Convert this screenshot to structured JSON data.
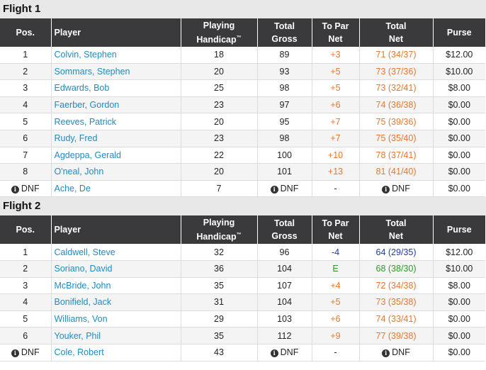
{
  "columns": {
    "pos": "Pos.",
    "player": "Player",
    "handicap_l1": "Playing",
    "handicap_l2": "Handicap",
    "handicap_tm": "™",
    "gross_l1": "Total",
    "gross_l2": "Gross",
    "topar_l1": "To Par",
    "topar_l2": "Net",
    "net_l1": "Total",
    "net_l2": "Net",
    "purse": "Purse"
  },
  "flights": [
    {
      "title": "Flight 1",
      "rows": [
        {
          "pos": "1",
          "player": "Colvin, Stephen",
          "handicap": "18",
          "gross": "89",
          "topar": "+3",
          "net": "71 (34/37)",
          "purse": "$12.00",
          "color": "orange"
        },
        {
          "pos": "2",
          "player": "Sommars, Stephen",
          "handicap": "20",
          "gross": "93",
          "topar": "+5",
          "net": "73 (37/36)",
          "purse": "$10.00",
          "color": "orange"
        },
        {
          "pos": "3",
          "player": "Edwards, Bob",
          "handicap": "25",
          "gross": "98",
          "topar": "+5",
          "net": "73 (32/41)",
          "purse": "$8.00",
          "color": "orange"
        },
        {
          "pos": "4",
          "player": "Faerber, Gordon",
          "handicap": "23",
          "gross": "97",
          "topar": "+6",
          "net": "74 (36/38)",
          "purse": "$0.00",
          "color": "orange"
        },
        {
          "pos": "5",
          "player": "Reeves, Patrick",
          "handicap": "20",
          "gross": "95",
          "topar": "+7",
          "net": "75 (39/36)",
          "purse": "$0.00",
          "color": "orange"
        },
        {
          "pos": "6",
          "player": "Rudy, Fred",
          "handicap": "23",
          "gross": "98",
          "topar": "+7",
          "net": "75 (35/40)",
          "purse": "$0.00",
          "color": "orange"
        },
        {
          "pos": "7",
          "player": "Agdeppa, Gerald",
          "handicap": "22",
          "gross": "100",
          "topar": "+10",
          "net": "78 (37/41)",
          "purse": "$0.00",
          "color": "orange"
        },
        {
          "pos": "8",
          "player": "O'neal, John",
          "handicap": "20",
          "gross": "101",
          "topar": "+13",
          "net": "81 (41/40)",
          "purse": "$0.00",
          "color": "orange"
        },
        {
          "pos": "DNF",
          "player": "Ache, De",
          "handicap": "7",
          "gross": "DNF",
          "topar": "-",
          "net": "DNF",
          "purse": "$0.00",
          "color": "none",
          "dnf": true
        }
      ]
    },
    {
      "title": "Flight 2",
      "rows": [
        {
          "pos": "1",
          "player": "Caldwell, Steve",
          "handicap": "32",
          "gross": "96",
          "topar": "-4",
          "net": "64 (29/35)",
          "purse": "$12.00",
          "color": "blue"
        },
        {
          "pos": "2",
          "player": "Soriano, David",
          "handicap": "36",
          "gross": "104",
          "topar": "E",
          "net": "68 (38/30)",
          "purse": "$10.00",
          "color": "green"
        },
        {
          "pos": "3",
          "player": "McBride, John",
          "handicap": "35",
          "gross": "107",
          "topar": "+4",
          "net": "72 (34/38)",
          "purse": "$8.00",
          "color": "orange"
        },
        {
          "pos": "4",
          "player": "Bonifield, Jack",
          "handicap": "31",
          "gross": "104",
          "topar": "+5",
          "net": "73 (35/38)",
          "purse": "$0.00",
          "color": "orange"
        },
        {
          "pos": "5",
          "player": "Williams, Von",
          "handicap": "29",
          "gross": "103",
          "topar": "+6",
          "net": "74 (33/41)",
          "purse": "$0.00",
          "color": "orange"
        },
        {
          "pos": "6",
          "player": "Youker, Phil",
          "handicap": "35",
          "gross": "112",
          "topar": "+9",
          "net": "77 (39/38)",
          "purse": "$0.00",
          "color": "orange"
        },
        {
          "pos": "DNF",
          "player": "Cole, Robert",
          "handicap": "43",
          "gross": "DNF",
          "topar": "-",
          "net": "DNF",
          "purse": "$0.00",
          "color": "none",
          "dnf": true
        }
      ]
    }
  ],
  "icons": {
    "dnf_info": "info-icon"
  }
}
